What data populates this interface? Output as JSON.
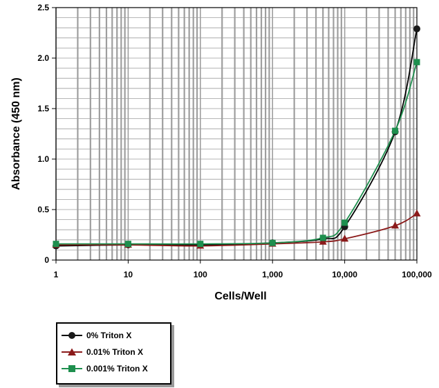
{
  "chart_data": {
    "type": "line",
    "title": "",
    "xlabel": "Cells/Well",
    "ylabel": "Absorbance (450 nm)",
    "xscale": "log",
    "xlim": [
      1,
      100000
    ],
    "ylim": [
      0,
      2.5
    ],
    "grid": true,
    "legend_position": "bottom-left",
    "x_tick_labels": [
      "1",
      "10",
      "100",
      "1,000",
      "10,000",
      "100,000"
    ],
    "y_tick_labels": [
      "0",
      "0.5",
      "1.0",
      "1.5",
      "2.0",
      "2.5"
    ],
    "y_ticks": [
      0,
      0.5,
      1.0,
      1.5,
      2.0,
      2.5
    ],
    "x": [
      1,
      10,
      100,
      1000,
      5000,
      10000,
      50000,
      100000
    ],
    "series": [
      {
        "name": "0% Triton X",
        "color": "#1a1a1a",
        "line_color": "#000000",
        "marker": "circle",
        "values": [
          0.14,
          0.15,
          0.15,
          0.17,
          0.21,
          0.33,
          1.27,
          2.29
        ]
      },
      {
        "name": "0.01% Triton X",
        "color": "#8b1a1a",
        "line_color": "#8b1a1a",
        "marker": "triangle",
        "values": [
          0.15,
          0.15,
          0.14,
          0.16,
          0.18,
          0.21,
          0.34,
          0.46
        ]
      },
      {
        "name": "0.001% Triton X",
        "color": "#1e8f4e",
        "line_color": "#1e8f4e",
        "marker": "square",
        "values": [
          0.16,
          0.16,
          0.16,
          0.17,
          0.22,
          0.37,
          1.28,
          1.96
        ]
      }
    ],
    "grid_color": "#9e9e9e"
  }
}
